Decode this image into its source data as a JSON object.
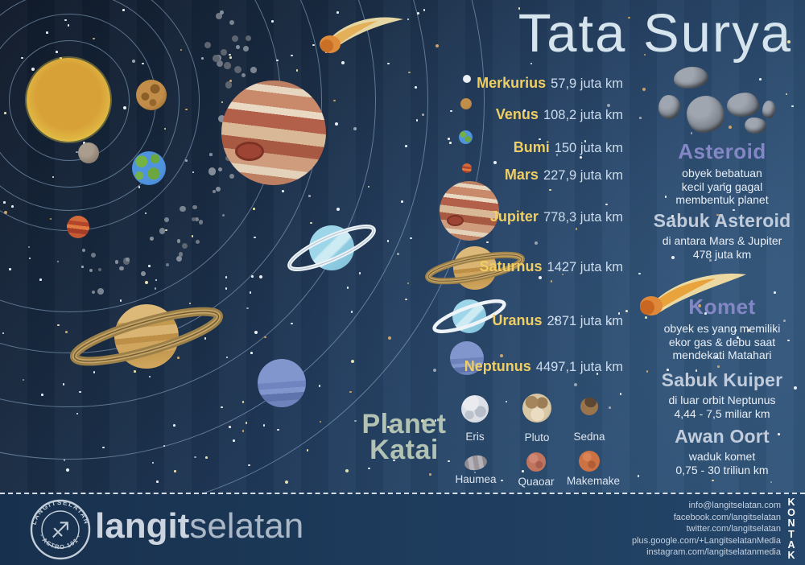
{
  "title": "Tata Surya",
  "colors": {
    "accent_yellow": "#efce63",
    "accent_purple": "#8487c6",
    "heading_blue": "#c0cbdc",
    "heading_sage": "#b3c3b3",
    "background_navy": "#1c2f4a",
    "text_light": "#e8eef6"
  },
  "planets": [
    {
      "name": "Merkurius",
      "distance": "57,9 juta km"
    },
    {
      "name": "Venus",
      "distance": "108,2 juta km"
    },
    {
      "name": "Bumi",
      "distance": "150 juta km"
    },
    {
      "name": "Mars",
      "distance": "227,9 juta km"
    },
    {
      "name": "Jupiter",
      "distance": "778,3 juta km"
    },
    {
      "name": "Saturnus",
      "distance": "1427 juta km"
    },
    {
      "name": "Uranus",
      "distance": "2871 juta km"
    },
    {
      "name": "Neptunus",
      "distance": "4497,1 juta km"
    }
  ],
  "info_sections": [
    {
      "title": "Asteroid",
      "desc": "obyek bebatuan\nkecil yang gagal\nmembentuk planet"
    },
    {
      "title": "Sabuk Asteroid",
      "desc": "di antara Mars & Jupiter\n478 juta km"
    },
    {
      "title": "Komet",
      "desc": "obyek es yang memiliki\nekor gas & debu saat\nmendekati Matahari"
    },
    {
      "title": "Sabuk Kuiper",
      "desc": "di luar orbit Neptunus\n4,44 - 7,5 miliar km"
    },
    {
      "title": "Awan Oort",
      "desc": "waduk komet\n0,75 - 30 triliun km"
    }
  ],
  "dwarf_planets": {
    "heading": "Planet\nKatai",
    "items": [
      "Eris",
      "Pluto",
      "Sedna",
      "Haumea",
      "Quaoar",
      "Makemake"
    ]
  },
  "footer": {
    "brand_bold": "langit",
    "brand_light": "selatan",
    "stamp_top": "LANGITSELATAN",
    "stamp_bottom": "· ASTRO 101 ·",
    "stamp_glyph": "♐",
    "kontak": "KONTAK",
    "contacts": [
      "info@langitselatan.com",
      "facebook.com/langitselatan",
      "twitter.com/langitselatan",
      "plus.google.com/+LangitselatanMedia",
      "instagram.com/langitselatanmedia"
    ]
  }
}
